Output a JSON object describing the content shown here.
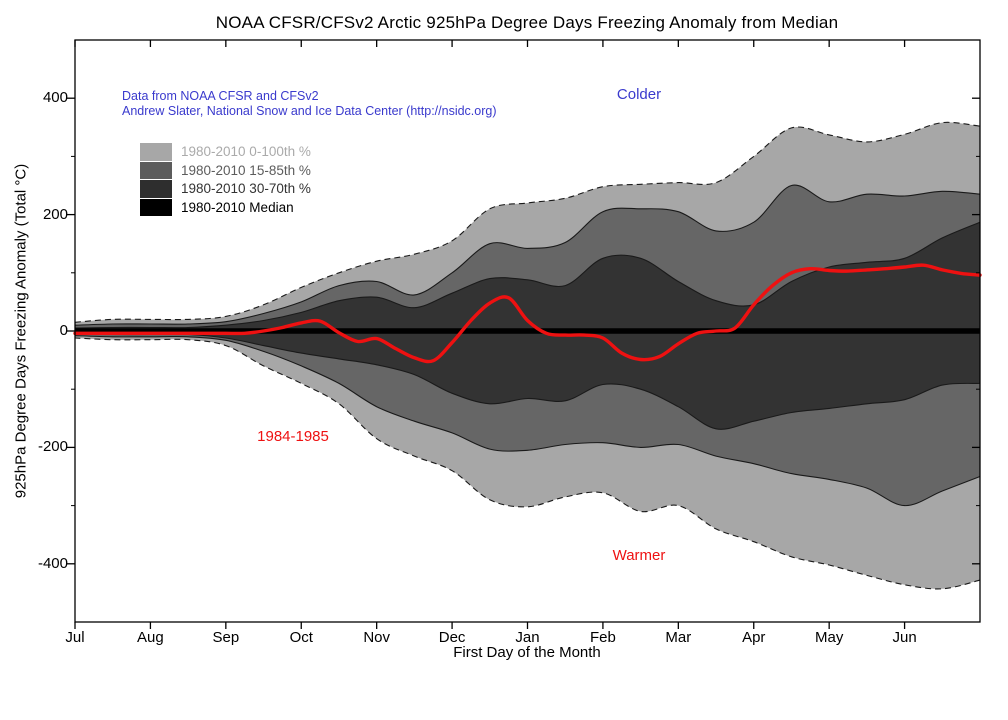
{
  "colors": {
    "background": "#ffffff",
    "axis": "#000000",
    "credit_blue": "#3a3acd",
    "annotation_blue": "#3a3acd",
    "annotation_red": "#ee1111",
    "band_light": "#a7a7a7",
    "band_mid": "#666666",
    "band_dark": "#333333",
    "median_black": "#000000",
    "series_red": "#ee1111",
    "legend_label_colors": [
      "#aaaaaa",
      "#5c5c5c",
      "#333333",
      "#000000"
    ]
  },
  "header": {
    "title": "NOAA CFSR/CFSv2 Arctic 925hPa Degree Days Freezing Anomaly from Median"
  },
  "credit": {
    "line1": "Data from NOAA CFSR and CFSv2",
    "line2": "Andrew Slater, National Snow and Ice Data Center (http://nsidc.org)"
  },
  "annotations": {
    "colder": "Colder",
    "warmer": "Warmer",
    "series_year_label": "1984-1985"
  },
  "legend": [
    {
      "label": "1980-2010 0-100th %",
      "swatch": "#a7a7a7",
      "text_color": "#aaaaaa"
    },
    {
      "label": "1980-2010 15-85th %",
      "swatch": "#5c5c5c",
      "text_color": "#5c5c5c"
    },
    {
      "label": "1980-2010 30-70th %",
      "swatch": "#2e2e2e",
      "text_color": "#333333"
    },
    {
      "label": "1980-2010 Median",
      "swatch": "#000000",
      "text_color": "#000000"
    }
  ],
  "chart_data": {
    "type": "area",
    "title": "NOAA CFSR/CFSv2 Arctic 925hPa Degree Days Freezing Anomaly from Median",
    "xlabel": "First Day of the Month",
    "ylabel": "925hPa Degree Days Freezing Anomaly (Total °C)",
    "ylim": [
      -500,
      500
    ],
    "xlim_months": [
      0,
      12
    ],
    "grid": false,
    "legend_position": "upper-left",
    "x_tick_labels": [
      "Jul",
      "Aug",
      "Sep",
      "Oct",
      "Nov",
      "Dec",
      "Jan",
      "Feb",
      "Mar",
      "Apr",
      "May",
      "Jun"
    ],
    "yticks_major": [
      400,
      200,
      0,
      -200,
      -400
    ],
    "ytick_labels": [
      "400",
      "200",
      "0",
      "-200",
      "-400"
    ],
    "yticks_minor": [
      300,
      100,
      -100,
      -300
    ],
    "x_band_months": [
      0,
      0.5,
      1,
      1.5,
      2,
      2.5,
      3,
      3.5,
      4,
      4.5,
      5,
      5.5,
      6,
      6.5,
      7,
      7.5,
      8,
      8.5,
      9,
      9.5,
      10,
      10.5,
      11,
      11.5,
      12
    ],
    "bands": [
      {
        "name": "1980-2010 0-100th %",
        "color": "#a7a7a7",
        "outline": "dashed",
        "upper": [
          15,
          20,
          20,
          20,
          25,
          45,
          75,
          100,
          120,
          132,
          155,
          210,
          220,
          228,
          248,
          252,
          255,
          255,
          300,
          349,
          337,
          325,
          338,
          358,
          352
        ],
        "lower": [
          -12,
          -15,
          -15,
          -15,
          -25,
          -60,
          -90,
          -125,
          -185,
          -215,
          -240,
          -290,
          -302,
          -285,
          -278,
          -310,
          -300,
          -340,
          -362,
          -388,
          -402,
          -420,
          -436,
          -443,
          -428
        ]
      },
      {
        "name": "1980-2010 15-85th %",
        "color": "#666666",
        "outline": "solid",
        "upper": [
          10,
          12,
          12,
          12,
          16,
          30,
          50,
          78,
          85,
          62,
          100,
          150,
          142,
          152,
          205,
          210,
          205,
          172,
          187,
          250,
          222,
          235,
          232,
          240,
          235
        ],
        "lower": [
          -8,
          -10,
          -10,
          -10,
          -16,
          -35,
          -60,
          -90,
          -130,
          -155,
          -175,
          -203,
          -205,
          -195,
          -192,
          -200,
          -195,
          -215,
          -228,
          -245,
          -255,
          -270,
          -300,
          -275,
          -250
        ]
      },
      {
        "name": "1980-2010 30-70th %",
        "color": "#333333",
        "outline": "solid",
        "upper": [
          5,
          6,
          6,
          6,
          10,
          18,
          32,
          52,
          58,
          40,
          65,
          90,
          88,
          78,
          125,
          125,
          85,
          52,
          45,
          85,
          110,
          118,
          125,
          160,
          187
        ],
        "lower": [
          -5,
          -6,
          -6,
          -6,
          -12,
          -25,
          -38,
          -48,
          -58,
          -75,
          -107,
          -125,
          -116,
          -120,
          -92,
          -100,
          -130,
          -168,
          -155,
          -140,
          -133,
          -125,
          -118,
          -93,
          -90
        ]
      }
    ],
    "median": {
      "name": "1980-2010 Median",
      "color": "#000000",
      "value": 0
    },
    "series": {
      "name": "1984-1985",
      "color": "#ee1111",
      "x_months": [
        0,
        0.25,
        0.5,
        0.75,
        1,
        1.25,
        1.5,
        1.75,
        2,
        2.25,
        2.5,
        2.75,
        3,
        3.25,
        3.5,
        3.75,
        4,
        4.25,
        4.5,
        4.75,
        5,
        5.25,
        5.5,
        5.75,
        6,
        6.25,
        6.5,
        6.75,
        7,
        7.25,
        7.5,
        7.75,
        8,
        8.25,
        8.5,
        8.75,
        9,
        9.25,
        9.5,
        9.75,
        10,
        10.25,
        10.5,
        10.75,
        11,
        11.25,
        11.5,
        11.75,
        12
      ],
      "y": [
        -4,
        -4,
        -4,
        -4,
        -4,
        -4,
        -4,
        -4,
        -4,
        -4,
        0,
        6,
        14,
        17,
        -3,
        -18,
        -13,
        -30,
        -46,
        -51,
        -20,
        18,
        48,
        57,
        18,
        -4,
        -7,
        -7,
        -12,
        -38,
        -49,
        -44,
        -22,
        -4,
        0,
        5,
        45,
        78,
        100,
        107,
        104,
        103,
        105,
        107,
        110,
        113,
        105,
        99,
        96
      ]
    }
  }
}
